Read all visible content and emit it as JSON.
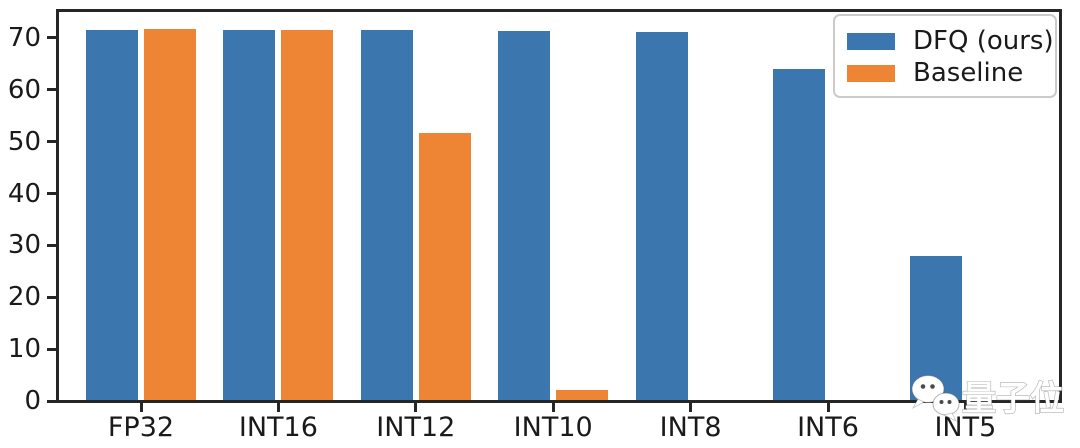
{
  "chart_data": {
    "type": "bar",
    "title": "",
    "xlabel": "",
    "ylabel": "",
    "categories": [
      "FP32",
      "INT16",
      "INT12",
      "INT10",
      "INT8",
      "INT6",
      "INT5"
    ],
    "series": [
      {
        "name": "DFQ (ours)",
        "color": "#3c76af",
        "values": [
          71.5,
          71.5,
          71.5,
          71.3,
          71.1,
          64.0,
          28.0
        ]
      },
      {
        "name": "Baseline",
        "color": "#ee8535",
        "values": [
          71.7,
          71.6,
          51.7,
          2.1,
          0,
          0,
          0
        ]
      }
    ],
    "yticks": [
      0,
      10,
      20,
      30,
      40,
      50,
      60,
      70
    ],
    "ylim": [
      0,
      75
    ],
    "grid": false,
    "legend_position": "upper-right",
    "axis_color": "#262626",
    "text_color": "#1a1a1a",
    "background_color": "#ffffff"
  },
  "watermark": {
    "brand_text": "量子位",
    "icon": "wechat-chat-bubbles-icon"
  }
}
